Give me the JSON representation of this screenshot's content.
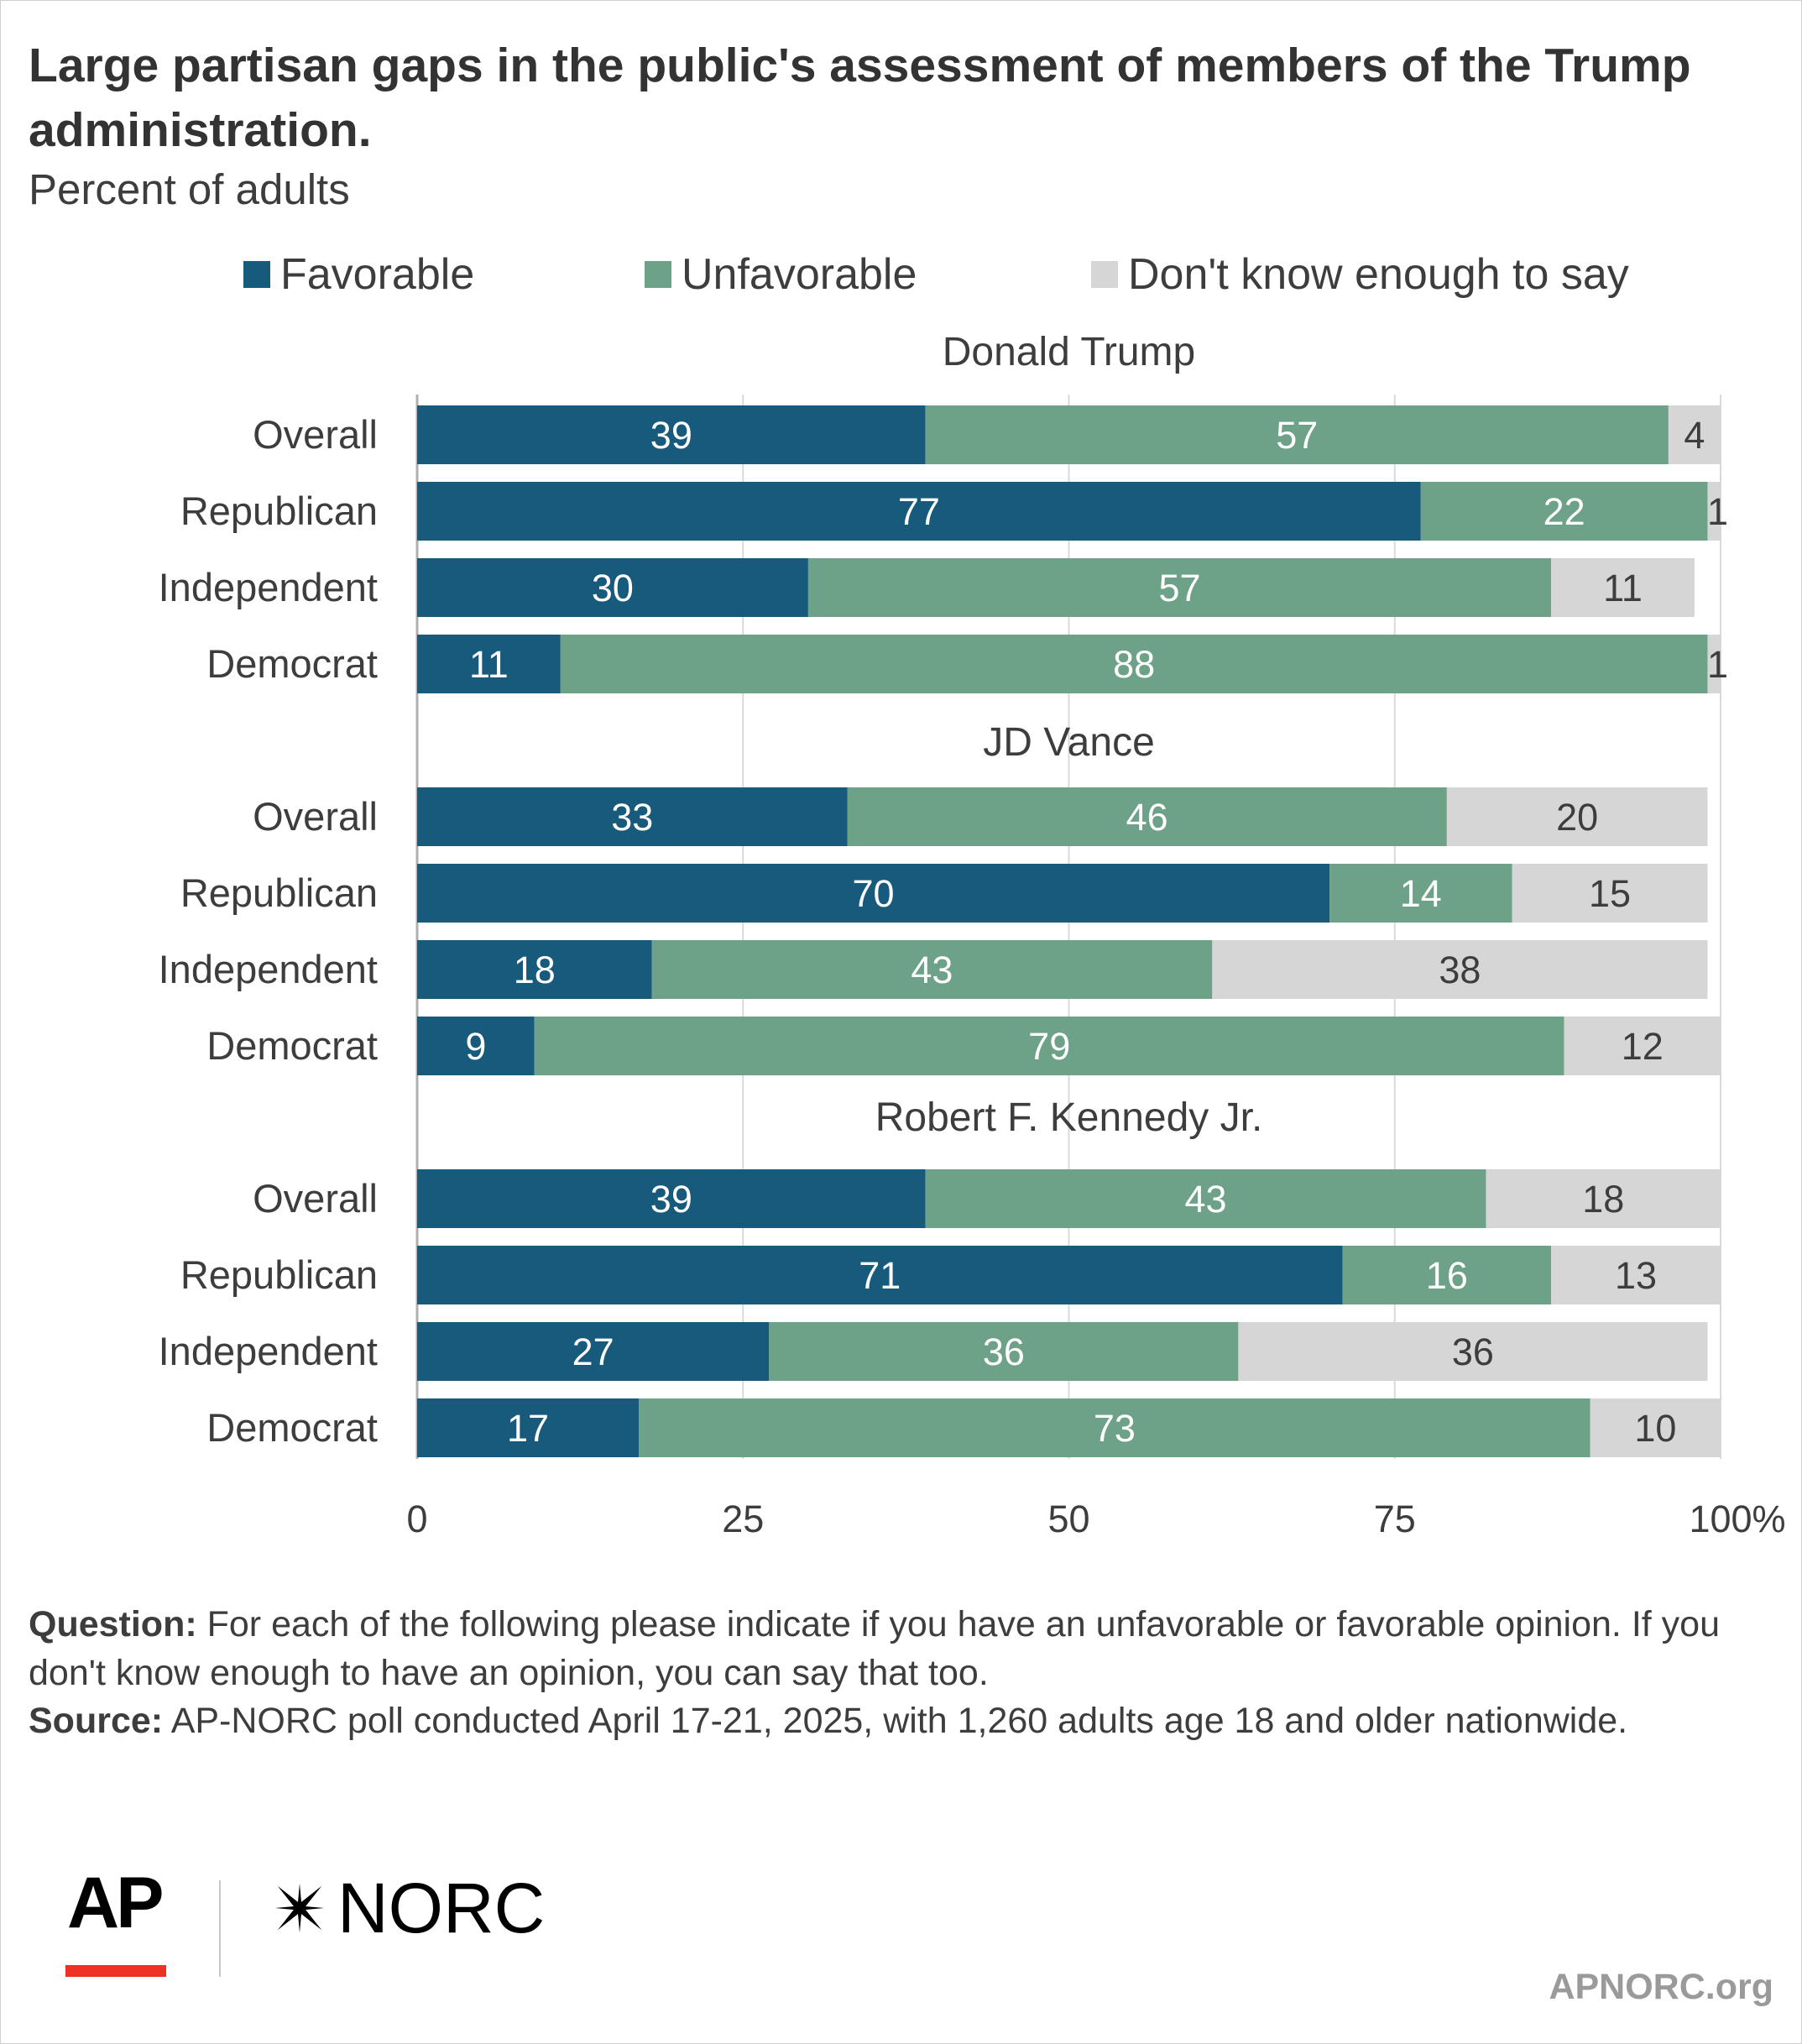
{
  "title": "Large partisan gaps in the public's assessment of members of the Trump administration.",
  "subtitle": "Percent of adults",
  "legend": [
    {
      "label": "Favorable",
      "color": "#175a7b"
    },
    {
      "label": "Unfavorable",
      "color": "#6ea288"
    },
    {
      "label": "Don't know enough to say",
      "color": "#d6d6d6"
    }
  ],
  "chart_data": {
    "type": "bar",
    "orientation": "horizontal",
    "stacked": true,
    "xlim": [
      0,
      100
    ],
    "xticks": [
      "0",
      "25",
      "50",
      "75",
      "100%"
    ],
    "grid": true,
    "legend_position": "top",
    "series_names": [
      "Favorable",
      "Unfavorable",
      "Don't know enough to say"
    ],
    "groups": [
      {
        "name": "Donald Trump",
        "rows": [
          {
            "label": "Overall",
            "values": [
              39,
              57,
              4
            ]
          },
          {
            "label": "Republican",
            "values": [
              77,
              22,
              1
            ]
          },
          {
            "label": "Independent",
            "values": [
              30,
              57,
              11
            ]
          },
          {
            "label": "Democrat",
            "values": [
              11,
              88,
              1
            ]
          }
        ]
      },
      {
        "name": "JD Vance",
        "rows": [
          {
            "label": "Overall",
            "values": [
              33,
              46,
              20
            ]
          },
          {
            "label": "Republican",
            "values": [
              70,
              14,
              15
            ]
          },
          {
            "label": "Independent",
            "values": [
              18,
              43,
              38
            ]
          },
          {
            "label": "Democrat",
            "values": [
              9,
              79,
              12
            ]
          }
        ]
      },
      {
        "name": "Robert F. Kennedy Jr.",
        "rows": [
          {
            "label": "Overall",
            "values": [
              39,
              43,
              18
            ]
          },
          {
            "label": "Republican",
            "values": [
              71,
              16,
              13
            ]
          },
          {
            "label": "Independent",
            "values": [
              27,
              36,
              36
            ]
          },
          {
            "label": "Democrat",
            "values": [
              17,
              73,
              10
            ]
          }
        ]
      }
    ]
  },
  "question": {
    "label": "Question:",
    "text": "For each of the following please indicate if you have an unfavorable or favorable opinion. If you don't know enough to have an opinion, you can say that too."
  },
  "source": {
    "label": "Source:",
    "text": "AP-NORC poll conducted April 17-21, 2025, with 1,260 adults age 18 and older nationwide."
  },
  "logos": {
    "ap": "AP",
    "norc": "NORC",
    "norc_icon": "star-burst-icon"
  },
  "website": "APNORC.org"
}
